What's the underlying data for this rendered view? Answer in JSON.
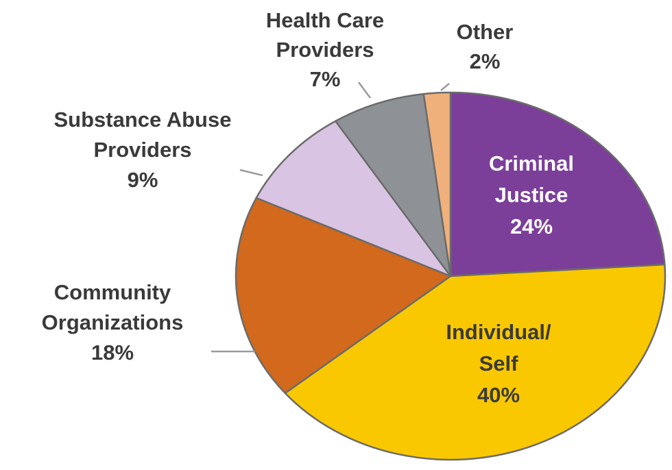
{
  "chart_data": {
    "type": "pie",
    "slices": [
      {
        "label_lines": [
          "Criminal",
          "Justice"
        ],
        "value_label": "24%",
        "value": 24,
        "color": "#7b3f99",
        "label_color": "#ffffff"
      },
      {
        "label_lines": [
          "Individual/",
          "Self"
        ],
        "value_label": "40%",
        "value": 40,
        "color": "#f9c800",
        "label_color": "#3a3a3a"
      },
      {
        "label_lines": [
          "Community",
          "Organizations"
        ],
        "value_label": "18%",
        "value": 18,
        "color": "#d2691c",
        "label_color": "#3a3a3a"
      },
      {
        "label_lines": [
          "Substance Abuse",
          "Providers"
        ],
        "value_label": "9%",
        "value": 9,
        "color": "#d9c4e3",
        "label_color": "#3a3a3a"
      },
      {
        "label_lines": [
          "Health Care",
          "Providers"
        ],
        "value_label": "7%",
        "value": 7,
        "color": "#8e9297",
        "label_color": "#3a3a3a"
      },
      {
        "label_lines": [
          "Other"
        ],
        "value_label": "2%",
        "value": 2,
        "color": "#f0b07c",
        "label_color": "#3a3a3a"
      }
    ],
    "slice_border_color": "#6b6b6b",
    "leader_line_color": "#9a9a9a"
  }
}
